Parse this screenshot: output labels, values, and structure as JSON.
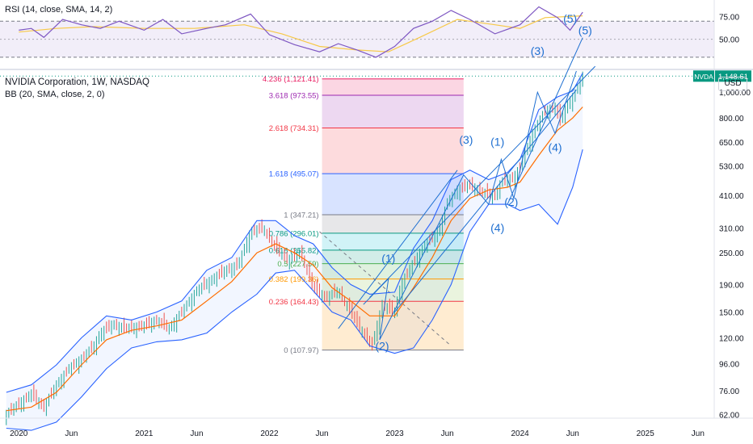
{
  "rsi": {
    "label": "RSI (14, close, SMA, 14, 2)",
    "ticks": [
      {
        "v": 75,
        "t": "75.00"
      },
      {
        "v": 50,
        "t": "50.00"
      }
    ],
    "bands": [
      70,
      30
    ],
    "range": [
      20,
      90
    ],
    "values": [
      [
        2020.0,
        60
      ],
      [
        2020.1,
        62
      ],
      [
        2020.2,
        52
      ],
      [
        2020.35,
        72
      ],
      [
        2020.5,
        66
      ],
      [
        2020.65,
        62
      ],
      [
        2020.8,
        70
      ],
      [
        2021.0,
        60
      ],
      [
        2021.15,
        72
      ],
      [
        2021.3,
        56
      ],
      [
        2021.5,
        62
      ],
      [
        2021.65,
        66
      ],
      [
        2021.85,
        78
      ],
      [
        2022.0,
        55
      ],
      [
        2022.2,
        44
      ],
      [
        2022.4,
        36
      ],
      [
        2022.55,
        45
      ],
      [
        2022.7,
        38
      ],
      [
        2022.85,
        30
      ],
      [
        2023.0,
        42
      ],
      [
        2023.15,
        62
      ],
      [
        2023.3,
        70
      ],
      [
        2023.45,
        82
      ],
      [
        2023.6,
        72
      ],
      [
        2023.8,
        56
      ],
      [
        2024.0,
        66
      ],
      [
        2024.15,
        86
      ],
      [
        2024.3,
        74
      ],
      [
        2024.4,
        60
      ],
      [
        2024.5,
        80
      ]
    ],
    "sma": [
      [
        2020.0,
        58
      ],
      [
        2020.3,
        62
      ],
      [
        2020.6,
        64
      ],
      [
        2021.0,
        62
      ],
      [
        2021.4,
        62
      ],
      [
        2021.8,
        66
      ],
      [
        2022.1,
        56
      ],
      [
        2022.4,
        42
      ],
      [
        2022.7,
        38
      ],
      [
        2022.95,
        36
      ],
      [
        2023.2,
        52
      ],
      [
        2023.5,
        72
      ],
      [
        2023.8,
        66
      ],
      [
        2024.0,
        62
      ],
      [
        2024.2,
        74
      ],
      [
        2024.5,
        76
      ]
    ]
  },
  "main": {
    "title": "NVIDIA Corporation, 1W, NASDAQ",
    "indicator": "BB (20, SMA, close, 2, 0)",
    "currency": "USD",
    "ticker_tag": "NVDA",
    "last_price": "1,148.61",
    "colors": {
      "bb_fill": "#2962ff",
      "bb_line": "#2962ff",
      "basis": "#ff6d00",
      "candle_up": "#26a69a",
      "candle_down": "#ef5350",
      "wave": "#1e6fd1",
      "accent": "#089981"
    }
  },
  "chart_data": {
    "type": "line",
    "price_scale": "log",
    "y_ticks": [
      {
        "v": 62,
        "t": "62.00"
      },
      {
        "v": 76,
        "t": "76.00"
      },
      {
        "v": 96,
        "t": "96.00"
      },
      {
        "v": 120,
        "t": "120.00"
      },
      {
        "v": 150,
        "t": "150.00"
      },
      {
        "v": 190,
        "t": "190.00"
      },
      {
        "v": 250,
        "t": "250.00"
      },
      {
        "v": 310,
        "t": "310.00"
      },
      {
        "v": 410,
        "t": "410.00"
      },
      {
        "v": 530,
        "t": "530.00"
      },
      {
        "v": 650,
        "t": "650.00"
      },
      {
        "v": 800,
        "t": "800.00"
      },
      {
        "v": 1000,
        "t": "1,000.00"
      }
    ],
    "x_ticks": [
      {
        "x": 2020.0,
        "t": "2020"
      },
      {
        "x": 2020.42,
        "t": "Jun"
      },
      {
        "x": 2021.0,
        "t": "2021"
      },
      {
        "x": 2021.42,
        "t": "Jun"
      },
      {
        "x": 2022.0,
        "t": "2022"
      },
      {
        "x": 2022.42,
        "t": "Jun"
      },
      {
        "x": 2023.0,
        "t": "2023"
      },
      {
        "x": 2023.42,
        "t": "Jun"
      },
      {
        "x": 2024.0,
        "t": "2024"
      },
      {
        "x": 2024.42,
        "t": "Jun"
      },
      {
        "x": 2025.0,
        "t": "2025"
      },
      {
        "x": 2025.42,
        "t": "Jun"
      }
    ],
    "price": [
      [
        2019.9,
        62
      ],
      [
        2020.0,
        68
      ],
      [
        2020.1,
        74
      ],
      [
        2020.2,
        66
      ],
      [
        2020.3,
        80
      ],
      [
        2020.4,
        92
      ],
      [
        2020.5,
        100
      ],
      [
        2020.6,
        112
      ],
      [
        2020.65,
        125
      ],
      [
        2020.75,
        135
      ],
      [
        2020.85,
        130
      ],
      [
        2021.0,
        133
      ],
      [
        2021.1,
        140
      ],
      [
        2021.2,
        130
      ],
      [
        2021.3,
        150
      ],
      [
        2021.42,
        180
      ],
      [
        2021.55,
        200
      ],
      [
        2021.65,
        215
      ],
      [
        2021.75,
        225
      ],
      [
        2021.85,
        300
      ],
      [
        2021.95,
        310
      ],
      [
        2022.05,
        260
      ],
      [
        2022.15,
        235
      ],
      [
        2022.25,
        250
      ],
      [
        2022.35,
        185
      ],
      [
        2022.45,
        170
      ],
      [
        2022.55,
        180
      ],
      [
        2022.65,
        150
      ],
      [
        2022.75,
        125
      ],
      [
        2022.82,
        112
      ],
      [
        2022.9,
        160
      ],
      [
        2023.0,
        150
      ],
      [
        2023.05,
        190
      ],
      [
        2023.15,
        230
      ],
      [
        2023.25,
        270
      ],
      [
        2023.35,
        300
      ],
      [
        2023.42,
        385
      ],
      [
        2023.5,
        430
      ],
      [
        2023.6,
        450
      ],
      [
        2023.7,
        420
      ],
      [
        2023.8,
        410
      ],
      [
        2023.85,
        460
      ],
      [
        2023.95,
        480
      ],
      [
        2024.0,
        520
      ],
      [
        2024.1,
        700
      ],
      [
        2024.2,
        850
      ],
      [
        2024.28,
        880
      ],
      [
        2024.32,
        780
      ],
      [
        2024.38,
        900
      ],
      [
        2024.45,
        1000
      ],
      [
        2024.5,
        1148.61
      ]
    ],
    "bb_upper": [
      [
        2019.9,
        75
      ],
      [
        2020.1,
        80
      ],
      [
        2020.3,
        95
      ],
      [
        2020.5,
        120
      ],
      [
        2020.7,
        145
      ],
      [
        2020.9,
        140
      ],
      [
        2021.1,
        150
      ],
      [
        2021.3,
        165
      ],
      [
        2021.5,
        215
      ],
      [
        2021.7,
        240
      ],
      [
        2021.9,
        330
      ],
      [
        2022.05,
        330
      ],
      [
        2022.2,
        290
      ],
      [
        2022.35,
        270
      ],
      [
        2022.5,
        220
      ],
      [
        2022.65,
        190
      ],
      [
        2022.8,
        175
      ],
      [
        2023.0,
        178
      ],
      [
        2023.15,
        260
      ],
      [
        2023.3,
        330
      ],
      [
        2023.45,
        470
      ],
      [
        2023.6,
        510
      ],
      [
        2023.75,
        470
      ],
      [
        2023.9,
        500
      ],
      [
        2024.0,
        560
      ],
      [
        2024.15,
        860
      ],
      [
        2024.3,
        960
      ],
      [
        2024.42,
        1010
      ],
      [
        2024.5,
        1180
      ]
    ],
    "bb_basis": [
      [
        2019.9,
        64
      ],
      [
        2020.1,
        66
      ],
      [
        2020.3,
        75
      ],
      [
        2020.5,
        95
      ],
      [
        2020.7,
        118
      ],
      [
        2020.9,
        128
      ],
      [
        2021.1,
        133
      ],
      [
        2021.3,
        140
      ],
      [
        2021.5,
        165
      ],
      [
        2021.7,
        195
      ],
      [
        2021.9,
        250
      ],
      [
        2022.05,
        270
      ],
      [
        2022.2,
        250
      ],
      [
        2022.35,
        225
      ],
      [
        2022.5,
        185
      ],
      [
        2022.65,
        165
      ],
      [
        2022.8,
        145
      ],
      [
        2023.0,
        145
      ],
      [
        2023.15,
        185
      ],
      [
        2023.3,
        240
      ],
      [
        2023.45,
        330
      ],
      [
        2023.6,
        400
      ],
      [
        2023.75,
        430
      ],
      [
        2023.9,
        440
      ],
      [
        2024.0,
        460
      ],
      [
        2024.15,
        580
      ],
      [
        2024.3,
        720
      ],
      [
        2024.42,
        800
      ],
      [
        2024.5,
        880
      ]
    ],
    "bb_lower": [
      [
        2019.9,
        55
      ],
      [
        2020.1,
        54
      ],
      [
        2020.3,
        58
      ],
      [
        2020.5,
        72
      ],
      [
        2020.7,
        92
      ],
      [
        2020.9,
        110
      ],
      [
        2021.1,
        116
      ],
      [
        2021.3,
        118
      ],
      [
        2021.5,
        125
      ],
      [
        2021.7,
        150
      ],
      [
        2021.9,
        175
      ],
      [
        2022.05,
        210
      ],
      [
        2022.2,
        215
      ],
      [
        2022.35,
        180
      ],
      [
        2022.5,
        150
      ],
      [
        2022.65,
        140
      ],
      [
        2022.8,
        112
      ],
      [
        2023.0,
        105
      ],
      [
        2023.15,
        110
      ],
      [
        2023.3,
        140
      ],
      [
        2023.45,
        190
      ],
      [
        2023.6,
        300
      ],
      [
        2023.75,
        380
      ],
      [
        2023.9,
        380
      ],
      [
        2024.0,
        360
      ],
      [
        2024.15,
        380
      ],
      [
        2024.3,
        320
      ],
      [
        2024.42,
        440
      ],
      [
        2024.5,
        610
      ]
    ],
    "fib": {
      "x_range": [
        2022.42,
        2023.55
      ],
      "levels": [
        {
          "v": 1121.41,
          "t": "4.236 (1,121.41)",
          "color": "#e91e63"
        },
        {
          "v": 973.55,
          "t": "3.618 (973.55)",
          "color": "#9c27b0"
        },
        {
          "v": 734.31,
          "t": "2.618 (734.31)",
          "color": "#f23645"
        },
        {
          "v": 495.07,
          "t": "1.618 (495.07)",
          "color": "#2962ff"
        },
        {
          "v": 347.21,
          "t": "1 (347.21)",
          "color": "#787b86"
        },
        {
          "v": 296.01,
          "t": "0.786 (296.01)",
          "color": "#089981"
        },
        {
          "v": 255.82,
          "t": "0.618 (255.82)",
          "color": "#089981"
        },
        {
          "v": 227.59,
          "t": "0.5 (227.59)",
          "color": "#4caf50"
        },
        {
          "v": 199.36,
          "t": "0.382 (199.36)",
          "color": "#ff9800"
        },
        {
          "v": 164.43,
          "t": "0.236 (164.43)",
          "color": "#f23645"
        },
        {
          "v": 107.97,
          "t": "0 (107.97)",
          "color": "#787b86"
        }
      ],
      "fills": [
        "#e91e63",
        "#9c27b0",
        "#f23645",
        "#2962ff",
        "#787b86",
        "#00bcd4",
        "#089981",
        "#4caf50",
        "#8bc34a",
        "#ff9800",
        "#f23645"
      ]
    },
    "waves": [
      {
        "t": "(1)",
        "x": 2022.95,
        "v": 230
      },
      {
        "t": "(2)",
        "x": 2022.9,
        "v": 108
      },
      {
        "t": "(3)",
        "x": 2023.57,
        "v": 640
      },
      {
        "t": "(1)",
        "x": 2023.82,
        "v": 630
      },
      {
        "t": "(2)",
        "x": 2023.93,
        "v": 375
      },
      {
        "t": "(4)",
        "x": 2023.82,
        "v": 300
      },
      {
        "t": "(3)",
        "x": 2024.14,
        "v": 1380
      },
      {
        "t": "(4)",
        "x": 2024.28,
        "v": 600
      },
      {
        "t": "(5)",
        "x": 2024.4,
        "v": 1820
      },
      {
        "t": "(5)",
        "x": 2024.52,
        "v": 1650
      }
    ]
  }
}
